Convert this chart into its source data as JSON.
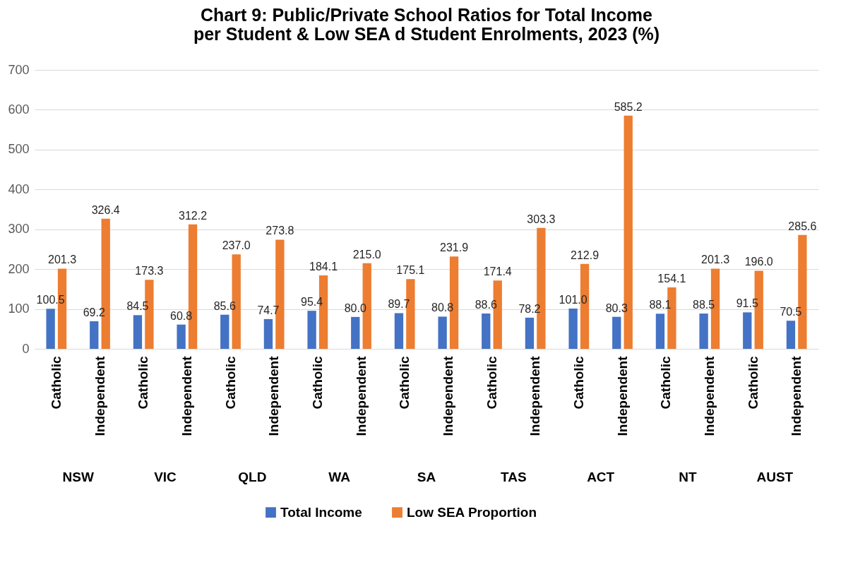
{
  "chart_data": {
    "type": "bar",
    "title": "Chart 9: Public/Private School Ratios for Total Income per Student & Low SEA d Student Enrolments, 2023 (%)",
    "categories": [
      "Catholic",
      "Independent",
      "Catholic",
      "Independent",
      "Catholic",
      "Independent",
      "Catholic",
      "Independent",
      "Catholic",
      "Independent",
      "Catholic",
      "Independent",
      "Catholic",
      "Independent",
      "Catholic",
      "Independent",
      "Catholic",
      "Independent"
    ],
    "annotations": [
      "NSW",
      "VIC",
      "QLD",
      "WA",
      "SA",
      "TAS",
      "ACT",
      "NT",
      "AUST"
    ],
    "series": [
      {
        "name": "Total Income",
        "color": "#4472c4",
        "values": [
          100.5,
          69.2,
          84.5,
          60.8,
          85.6,
          74.7,
          95.4,
          80.0,
          89.7,
          80.8,
          88.6,
          78.2,
          101.0,
          80.3,
          88.1,
          88.5,
          91.5,
          70.5
        ],
        "value_labels": [
          "100.5",
          "69.2",
          "84.5",
          "60.8",
          "85.6",
          "74.7",
          "95.4",
          "80.0",
          "89.7",
          "80.8",
          "88.6",
          "78.2",
          "101.0",
          "80.3",
          "88.1",
          "88.5",
          "91.5",
          "70.5"
        ]
      },
      {
        "name": "Low SEA Proportion",
        "color": "#ed7d31",
        "values": [
          201.3,
          326.4,
          173.3,
          312.2,
          237.0,
          273.8,
          184.1,
          215.0,
          175.1,
          231.9,
          171.4,
          303.3,
          212.9,
          585.2,
          154.1,
          201.3,
          196.0,
          285.6
        ],
        "value_labels": [
          "201.3",
          "326.4",
          "173.3",
          "312.2",
          "237.0",
          "273.8",
          "184.1",
          "215.0",
          "175.1",
          "231.9",
          "171.4",
          "303.3",
          "212.9",
          "585.2",
          "154.1",
          "201.3",
          "196.0",
          "285.6"
        ]
      }
    ],
    "ylim": [
      0,
      700
    ],
    "yticks": [
      0,
      100,
      200,
      300,
      400,
      500,
      600,
      700
    ],
    "grid": "y",
    "legend": "bottom"
  }
}
